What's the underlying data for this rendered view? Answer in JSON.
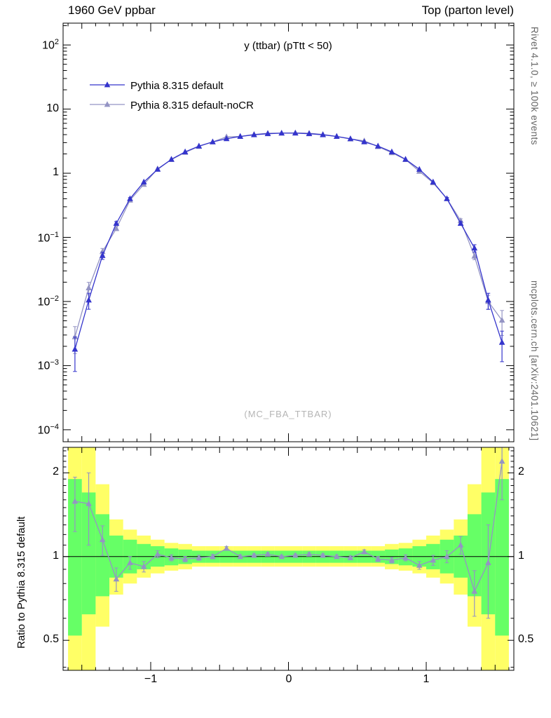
{
  "header": {
    "left": "1960 GeV ppbar",
    "right": "Top (parton level)"
  },
  "side_labels": {
    "top_right": "Rivet 4.1.0, ≥ 100k events",
    "bottom_right": "mcplots.cern.ch [arXiv:2401.10621]"
  },
  "watermark": "(MC_FBA_TTBAR)",
  "colors": {
    "default": "#3434cc",
    "nocr": "#9494c4",
    "band_green": "#66ff66",
    "band_yellow": "#ffff66",
    "frame": "#000000",
    "watermark": "#b5b5b5"
  },
  "chart_data": [
    {
      "type": "line",
      "title": "y (ttbar) (pTtt < 50)",
      "y_scale": "log",
      "ylim": [
        6.5e-05,
        219
      ],
      "xlim": [
        -1.636,
        1.636
      ],
      "yticks_exponents": [
        2,
        1,
        0,
        -1,
        -2,
        -3,
        -4
      ],
      "xticks": [
        -1,
        0,
        1
      ],
      "x": [
        -1.55,
        -1.45,
        -1.35,
        -1.25,
        -1.15,
        -1.05,
        -0.95,
        -0.85,
        -0.75,
        -0.65,
        -0.55,
        -0.45,
        -0.35,
        -0.25,
        -0.15,
        -0.05,
        0.05,
        0.15,
        0.25,
        0.35,
        0.45,
        0.55,
        0.65,
        0.75,
        0.85,
        0.95,
        1.05,
        1.15,
        1.25,
        1.35,
        1.45,
        1.55
      ],
      "series": [
        {
          "name": "Pythia 8.315 default",
          "color_key": "default",
          "values": [
            0.0018,
            0.0105,
            0.052,
            0.165,
            0.4,
            0.73,
            1.15,
            1.65,
            2.15,
            2.65,
            3.08,
            3.45,
            3.75,
            3.98,
            4.13,
            4.22,
            4.22,
            4.13,
            3.98,
            3.75,
            3.45,
            3.08,
            2.65,
            2.15,
            1.65,
            1.15,
            0.73,
            0.4,
            0.165,
            0.068,
            0.0105,
            0.0023
          ],
          "yerr_rel": [
            0.55,
            0.28,
            0.13,
            0.07,
            0.045,
            0.03,
            0.025,
            0.02,
            0.018,
            0.015,
            0.013,
            0.012,
            0.011,
            0.01,
            0.01,
            0.01,
            0.01,
            0.01,
            0.01,
            0.011,
            0.012,
            0.013,
            0.015,
            0.018,
            0.02,
            0.025,
            0.03,
            0.045,
            0.07,
            0.13,
            0.28,
            0.5
          ]
        },
        {
          "name": "Pythia 8.315 default-noCR",
          "color_key": "nocr",
          "values": [
            0.0028,
            0.0163,
            0.06,
            0.137,
            0.38,
            0.67,
            1.17,
            1.63,
            2.11,
            2.62,
            3.08,
            3.69,
            3.75,
            4.02,
            4.21,
            4.22,
            4.26,
            4.21,
            4.02,
            3.75,
            3.42,
            3.2,
            2.6,
            2.09,
            1.63,
            1.07,
            0.71,
            0.4,
            0.182,
            0.051,
            0.01,
            0.0051
          ],
          "yerr_rel": [
            0.45,
            0.22,
            0.12,
            0.07,
            0.045,
            0.03,
            0.025,
            0.02,
            0.018,
            0.015,
            0.013,
            0.012,
            0.011,
            0.01,
            0.01,
            0.01,
            0.01,
            0.01,
            0.01,
            0.011,
            0.012,
            0.013,
            0.015,
            0.018,
            0.02,
            0.025,
            0.03,
            0.045,
            0.07,
            0.12,
            0.25,
            0.42
          ]
        }
      ]
    },
    {
      "type": "ratio",
      "ylabel": "Ratio to Pythia 8.315 default",
      "y_scale": "log",
      "ylim": [
        0.39,
        2.47
      ],
      "yticks": [
        2,
        1,
        0.5
      ],
      "xticks": [
        -1,
        0,
        1
      ],
      "x": [
        -1.55,
        -1.45,
        -1.35,
        -1.25,
        -1.15,
        -1.05,
        -0.95,
        -0.85,
        -0.75,
        -0.65,
        -0.55,
        -0.45,
        -0.35,
        -0.25,
        -0.15,
        -0.05,
        0.05,
        0.15,
        0.25,
        0.35,
        0.45,
        0.55,
        0.65,
        0.75,
        0.85,
        0.95,
        1.05,
        1.15,
        1.25,
        1.35,
        1.45,
        1.55
      ],
      "values": [
        1.58,
        1.55,
        1.15,
        0.83,
        0.95,
        0.92,
        1.02,
        0.99,
        0.98,
        0.99,
        1.0,
        1.07,
        1.0,
        1.01,
        1.02,
        1.0,
        1.01,
        1.02,
        1.01,
        1.0,
        0.99,
        1.04,
        0.98,
        0.97,
        0.99,
        0.93,
        0.97,
        1.0,
        1.1,
        0.75,
        0.95,
        2.2
      ],
      "yerr": [
        0.35,
        0.45,
        0.14,
        0.08,
        0.05,
        0.04,
        0.03,
        0.025,
        0.022,
        0.02,
        0.018,
        0.016,
        0.014,
        0.013,
        0.012,
        0.012,
        0.012,
        0.012,
        0.013,
        0.014,
        0.016,
        0.018,
        0.02,
        0.022,
        0.025,
        0.03,
        0.04,
        0.05,
        0.08,
        0.14,
        0.35,
        0.6
      ],
      "bands": {
        "green_lo": [
          0.52,
          0.62,
          0.72,
          0.84,
          0.87,
          0.9,
          0.92,
          0.93,
          0.94,
          0.95,
          0.95,
          0.95,
          0.95,
          0.95,
          0.95,
          0.95,
          0.95,
          0.95,
          0.95,
          0.95,
          0.95,
          0.95,
          0.95,
          0.94,
          0.93,
          0.92,
          0.9,
          0.87,
          0.84,
          0.72,
          0.62,
          0.52
        ],
        "green_hi": [
          1.9,
          1.7,
          1.42,
          1.19,
          1.15,
          1.11,
          1.09,
          1.07,
          1.06,
          1.05,
          1.05,
          1.05,
          1.05,
          1.05,
          1.05,
          1.05,
          1.05,
          1.05,
          1.05,
          1.05,
          1.05,
          1.05,
          1.05,
          1.06,
          1.07,
          1.09,
          1.11,
          1.15,
          1.19,
          1.42,
          1.7,
          1.9
        ],
        "yellow_lo": [
          0.39,
          0.39,
          0.56,
          0.73,
          0.8,
          0.84,
          0.87,
          0.89,
          0.9,
          0.92,
          0.92,
          0.92,
          0.92,
          0.92,
          0.92,
          0.92,
          0.92,
          0.92,
          0.92,
          0.92,
          0.92,
          0.92,
          0.92,
          0.9,
          0.89,
          0.87,
          0.84,
          0.8,
          0.73,
          0.56,
          0.39,
          0.39
        ],
        "yellow_hi": [
          2.47,
          2.47,
          1.82,
          1.36,
          1.25,
          1.19,
          1.15,
          1.12,
          1.11,
          1.09,
          1.09,
          1.09,
          1.09,
          1.09,
          1.09,
          1.09,
          1.09,
          1.09,
          1.09,
          1.09,
          1.09,
          1.09,
          1.09,
          1.11,
          1.12,
          1.15,
          1.19,
          1.25,
          1.36,
          1.82,
          2.47,
          2.47
        ]
      }
    }
  ]
}
